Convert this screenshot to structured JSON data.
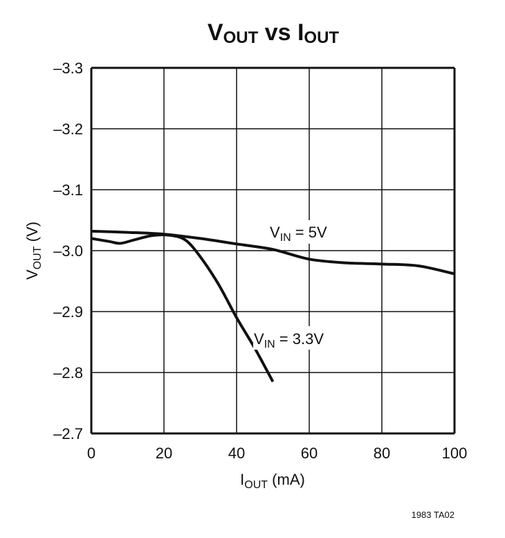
{
  "chart_data": {
    "type": "line",
    "title": {
      "main1": "V",
      "sub1": "OUT",
      "mid": " vs ",
      "main2": "I",
      "sub2": "OUT"
    },
    "xlabel": {
      "main": "I",
      "sub": "OUT",
      "rest": " (mA)"
    },
    "ylabel": {
      "main": "V",
      "sub": "OUT",
      "rest": " (V)"
    },
    "xlim": [
      0,
      100
    ],
    "ylim": [
      -3.3,
      -2.7
    ],
    "y_inverted": true,
    "x_ticks": [
      "0",
      "20",
      "40",
      "60",
      "80",
      "100"
    ],
    "x_tick_values": [
      0,
      20,
      40,
      60,
      80,
      100
    ],
    "y_ticks": [
      "–3.3",
      "–3.2",
      "–3.1",
      "–3.0",
      "–2.9",
      "–2.8",
      "–2.7"
    ],
    "y_tick_values": [
      -3.3,
      -3.2,
      -3.1,
      -3.0,
      -2.9,
      -2.8,
      -2.7
    ],
    "grid": true,
    "series": [
      {
        "name": {
          "main": "V",
          "sub": "IN",
          "rest": " = 5V"
        },
        "x": [
          0,
          10,
          20,
          30,
          40,
          50,
          60,
          70,
          80,
          90,
          100
        ],
        "y": [
          -3.032,
          -3.03,
          -3.027,
          -3.02,
          -3.011,
          -3.002,
          -2.986,
          -2.98,
          -2.978,
          -2.975,
          -2.962
        ]
      },
      {
        "name": {
          "main": "V",
          "sub": "IN",
          "rest": " = 3.3V"
        },
        "x": [
          0,
          5,
          8,
          12,
          17,
          22,
          26,
          30,
          35,
          40,
          45,
          50
        ],
        "y": [
          -3.02,
          -3.015,
          -3.012,
          -3.018,
          -3.025,
          -3.025,
          -3.017,
          -2.99,
          -2.945,
          -2.89,
          -2.84,
          -2.785
        ]
      }
    ],
    "colors": {
      "line": "#111111",
      "grid": "#111111"
    },
    "footnote": "1983 TA02"
  }
}
